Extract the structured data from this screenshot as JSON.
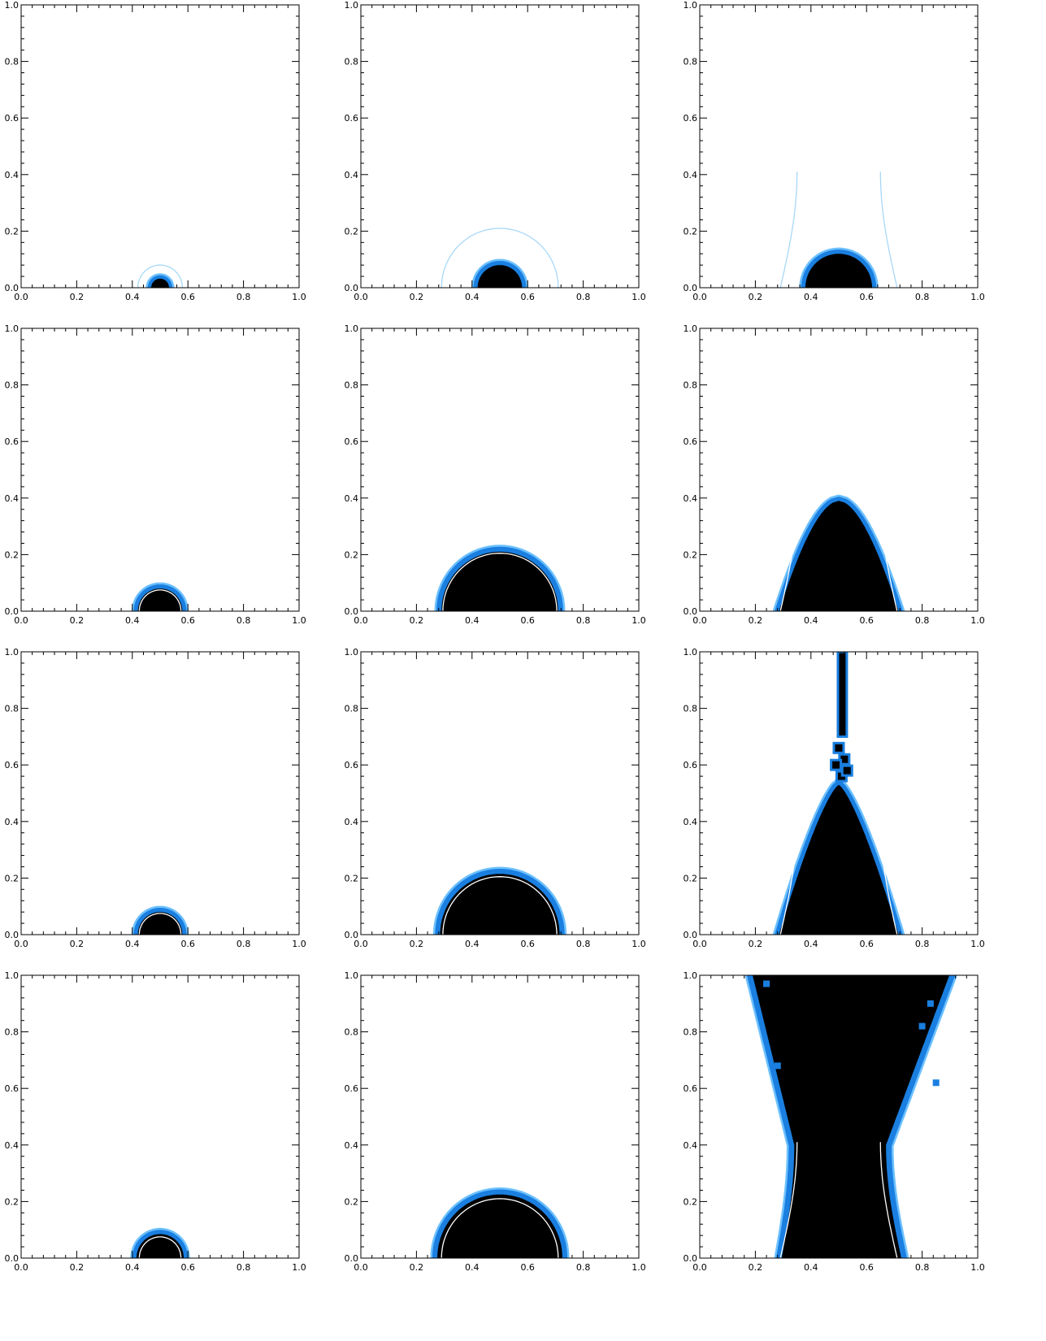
{
  "chart_data": [
    {
      "type": "contour",
      "panel": "row1-col1",
      "shape": "cap",
      "radius": 0.032,
      "halo": 0.012,
      "contour": "arc",
      "contour_radius": 0.08,
      "contour_color": "#a8d8f8",
      "xlim": [
        0,
        1
      ],
      "ylim": [
        0,
        1
      ],
      "xticklabels": [
        "0.0",
        "0.2",
        "0.4",
        "0.6",
        "0.8",
        "1.0"
      ],
      "yticklabels": [
        "0.0",
        "0.2",
        "0.4",
        "0.6",
        "0.8",
        "1.0"
      ]
    },
    {
      "type": "contour",
      "panel": "row1-col2",
      "shape": "cap",
      "radius": 0.08,
      "halo": 0.015,
      "contour": "arc",
      "contour_radius": 0.21,
      "contour_color": "#a8d8f8",
      "xlim": [
        0,
        1
      ],
      "ylim": [
        0,
        1
      ],
      "xticklabels": [
        "0.0",
        "0.2",
        "0.4",
        "0.6",
        "0.8",
        "1.0"
      ],
      "yticklabels": [
        "0.0",
        "0.2",
        "0.4",
        "0.6",
        "0.8",
        "1.0"
      ]
    },
    {
      "type": "contour",
      "panel": "row1-col3",
      "shape": "cap",
      "radius": 0.12,
      "halo": 0.015,
      "contour": "neck",
      "contour_color": "#a8d8f8",
      "xlim": [
        0,
        1
      ],
      "ylim": [
        0,
        1
      ],
      "xticklabels": [
        "0.0",
        "0.2",
        "0.4",
        "0.6",
        "0.8",
        "1.0"
      ],
      "yticklabels": [
        "0.0",
        "0.2",
        "0.4",
        "0.6",
        "0.8",
        "1.0"
      ]
    },
    {
      "type": "contour",
      "panel": "row2-col1",
      "shape": "cap",
      "radius": 0.08,
      "halo": 0.015,
      "contour": "arc",
      "contour_radius": 0.075,
      "contour_color": "#ffffff",
      "xlim": [
        0,
        1
      ],
      "ylim": [
        0,
        1
      ],
      "xticklabels": [
        "0.0",
        "0.2",
        "0.4",
        "0.6",
        "0.8",
        "1.0"
      ],
      "yticklabels": [
        "0.0",
        "0.2",
        "0.4",
        "0.6",
        "0.8",
        "1.0"
      ]
    },
    {
      "type": "contour",
      "panel": "row2-col2",
      "shape": "cap",
      "radius": 0.21,
      "halo": 0.018,
      "contour": "arc",
      "contour_radius": 0.205,
      "contour_color": "#ffffff",
      "xlim": [
        0,
        1
      ],
      "ylim": [
        0,
        1
      ],
      "xticklabels": [
        "0.0",
        "0.2",
        "0.4",
        "0.6",
        "0.8",
        "1.0"
      ],
      "yticklabels": [
        "0.0",
        "0.2",
        "0.4",
        "0.6",
        "0.8",
        "1.0"
      ]
    },
    {
      "type": "contour",
      "panel": "row2-col3",
      "shape": "dome",
      "top": 0.39,
      "halo": 0.015,
      "contour": "neck",
      "contour_color": "#ffffff",
      "xlim": [
        0,
        1
      ],
      "ylim": [
        0,
        1
      ],
      "xticklabels": [
        "0.0",
        "0.2",
        "0.4",
        "0.6",
        "0.8",
        "1.0"
      ],
      "yticklabels": [
        "0.0",
        "0.2",
        "0.4",
        "0.6",
        "0.8",
        "1.0"
      ]
    },
    {
      "type": "contour",
      "panel": "row3-col1",
      "shape": "cap",
      "radius": 0.08,
      "halo": 0.015,
      "contour": "arc",
      "contour_radius": 0.075,
      "contour_color": "#ffffff",
      "xlim": [
        0,
        1
      ],
      "ylim": [
        0,
        1
      ],
      "xticklabels": [
        "0.0",
        "0.2",
        "0.4",
        "0.6",
        "0.8",
        "1.0"
      ],
      "yticklabels": [
        "0.0",
        "0.2",
        "0.4",
        "0.6",
        "0.8",
        "1.0"
      ]
    },
    {
      "type": "contour",
      "panel": "row3-col2",
      "shape": "cap",
      "radius": 0.215,
      "halo": 0.018,
      "contour": "arc",
      "contour_radius": 0.205,
      "contour_color": "#ffffff",
      "xlim": [
        0,
        1
      ],
      "ylim": [
        0,
        1
      ],
      "xticklabels": [
        "0.0",
        "0.2",
        "0.4",
        "0.6",
        "0.8",
        "1.0"
      ],
      "yticklabels": [
        "0.0",
        "0.2",
        "0.4",
        "0.6",
        "0.8",
        "1.0"
      ]
    },
    {
      "type": "contour",
      "panel": "row3-col3",
      "shape": "spire",
      "top": 0.53,
      "halo": 0.015,
      "contour": "neck",
      "contour_color": "#ffffff",
      "xlim": [
        0,
        1
      ],
      "ylim": [
        0,
        1
      ],
      "xticklabels": [
        "0.0",
        "0.2",
        "0.4",
        "0.6",
        "0.8",
        "1.0"
      ],
      "yticklabels": [
        "0.0",
        "0.2",
        "0.4",
        "0.6",
        "0.8",
        "1.0"
      ]
    },
    {
      "type": "contour",
      "panel": "row4-col1",
      "shape": "cap",
      "radius": 0.085,
      "halo": 0.015,
      "contour": "arc",
      "contour_radius": 0.075,
      "contour_color": "#ffffff",
      "xlim": [
        0,
        1
      ],
      "ylim": [
        0,
        1
      ],
      "xticklabels": [
        "0.0",
        "0.2",
        "0.4",
        "0.6",
        "0.8",
        "1.0"
      ],
      "yticklabels": [
        "0.0",
        "0.2",
        "0.4",
        "0.6",
        "0.8",
        "1.0"
      ]
    },
    {
      "type": "contour",
      "panel": "row4-col2",
      "shape": "cap",
      "radius": 0.225,
      "halo": 0.018,
      "contour": "arc",
      "contour_radius": 0.21,
      "contour_color": "#ffffff",
      "xlim": [
        0,
        1
      ],
      "ylim": [
        0,
        1
      ],
      "xticklabels": [
        "0.0",
        "0.2",
        "0.4",
        "0.6",
        "0.8",
        "1.0"
      ],
      "yticklabels": [
        "0.0",
        "0.2",
        "0.4",
        "0.6",
        "0.8",
        "1.0"
      ]
    },
    {
      "type": "contour",
      "panel": "row4-col3",
      "shape": "hourglass",
      "halo": 0.02,
      "contour": "neck",
      "contour_color": "#ffffff",
      "xlim": [
        0,
        1
      ],
      "ylim": [
        0,
        1
      ],
      "xticklabels": [
        "0.0",
        "0.2",
        "0.4",
        "0.6",
        "0.8",
        "1.0"
      ],
      "yticklabels": [
        "0.0",
        "0.2",
        "0.4",
        "0.6",
        "0.8",
        "1.0"
      ]
    }
  ],
  "colors": {
    "fill": "#000000",
    "halo": "#1a7fe0",
    "halo_outer": "#6cc0ff",
    "contour_light": "#a8d8f8",
    "contour_white": "#ffffff"
  }
}
